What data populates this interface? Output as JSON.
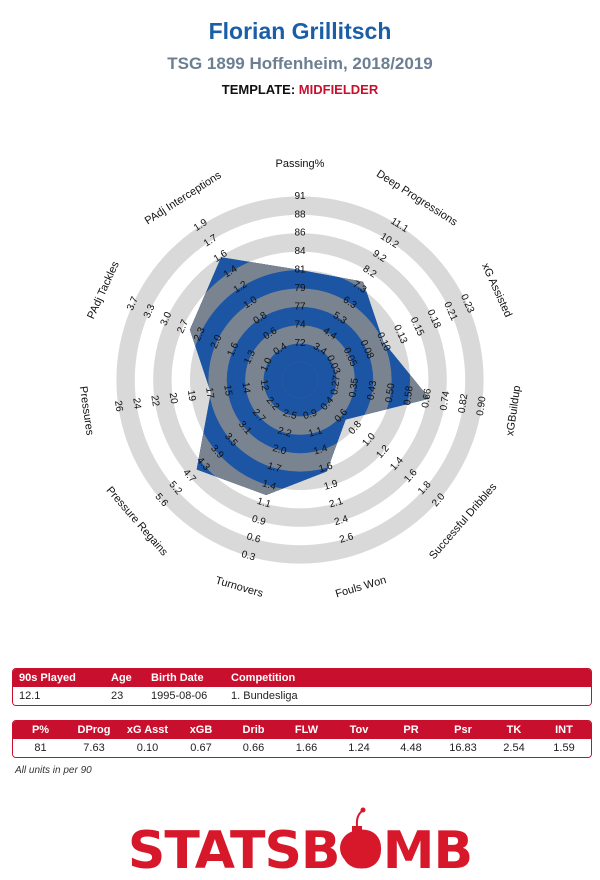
{
  "header": {
    "player": "Florian Grillitsch",
    "club_season": "TSG 1899 Hoffenheim, 2018/2019",
    "template_label": "TEMPLATE:",
    "template_value": "MIDFIELDER"
  },
  "chart_data": {
    "type": "radar",
    "axes": [
      {
        "label": "Passing%",
        "ticks": [
          "72",
          "74",
          "77",
          "79",
          "81",
          "84",
          "86",
          "88",
          "91"
        ],
        "value": 81
      },
      {
        "label": "Deep Progressions",
        "ticks": [
          "3.4",
          "4.4",
          "5.3",
          "6.3",
          "7.3",
          "8.2",
          "9.2",
          "10.2",
          "11.1"
        ],
        "value": 7.63
      },
      {
        "label": "xG Assisted",
        "ticks": [
          "0.03",
          "0.05",
          "0.08",
          "0.10",
          "0.13",
          "0.15",
          "0.18",
          "0.21",
          "0.23"
        ],
        "value": 0.1
      },
      {
        "label": "xGBuildup",
        "ticks": [
          "0.27",
          "0.35",
          "0.43",
          "0.50",
          "0.58",
          "0.66",
          "0.74",
          "0.82",
          "0.90"
        ],
        "value": 0.67
      },
      {
        "label": "Successful Dribbles",
        "ticks": [
          "0.4",
          "0.6",
          "0.8",
          "1.0",
          "1.2",
          "1.4",
          "1.6",
          "1.8",
          "2.0"
        ],
        "value": 0.66
      },
      {
        "label": "Fouls Won",
        "ticks": [
          "0.9",
          "1.1",
          "1.4",
          "1.6",
          "1.9",
          "2.1",
          "2.4",
          "2.6"
        ],
        "value": 1.66
      },
      {
        "label": "Turnovers",
        "ticks": [
          "2.5",
          "2.2",
          "2.0",
          "1.7",
          "1.4",
          "1.1",
          "0.9",
          "0.6",
          "0.3"
        ],
        "value": 1.24
      },
      {
        "label": "Pressure Regains",
        "ticks": [
          "2.2",
          "2.7",
          "3.1",
          "3.5",
          "3.9",
          "4.3",
          "4.7",
          "5.2",
          "5.6"
        ],
        "value": 4.48
      },
      {
        "label": "Pressures",
        "ticks": [
          "12",
          "14",
          "15",
          "17",
          "19",
          "20",
          "22",
          "24",
          "26"
        ],
        "value": 16.83
      },
      {
        "label": "PAdj Tackles",
        "ticks": [
          "1.0",
          "1.3",
          "1.6",
          "2.0",
          "2.3",
          "2.7",
          "3.0",
          "3.3",
          "3.7"
        ],
        "value": 2.54
      },
      {
        "label": "PAdj Interceptions",
        "ticks": [
          "0.4",
          "0.6",
          "0.8",
          "1.0",
          "1.2",
          "1.4",
          "1.6",
          "1.7",
          "1.9"
        ],
        "value": 1.59
      }
    ],
    "ring_colors": [
      "#1b55a3",
      "#d9d9d9"
    ],
    "fill_color": "#1b55a3",
    "overlay_color": "#7a8491"
  },
  "table1": {
    "headers": [
      "90s Played",
      "Age",
      "Birth Date",
      "Competition"
    ],
    "values": [
      "12.1",
      "23",
      "1995-08-06",
      "1. Bundesliga"
    ]
  },
  "table2": {
    "headers": [
      "P%",
      "DProg",
      "xG Asst",
      "xGB",
      "Drib",
      "FLW",
      "Tov",
      "PR",
      "Psr",
      "TK",
      "INT"
    ],
    "values": [
      "81",
      "7.63",
      "0.10",
      "0.67",
      "0.66",
      "1.66",
      "1.24",
      "4.48",
      "16.83",
      "2.54",
      "1.59"
    ]
  },
  "footnote": "All units in per 90",
  "logo": {
    "brand": "STATSBOMB",
    "color": "#d7182a"
  }
}
